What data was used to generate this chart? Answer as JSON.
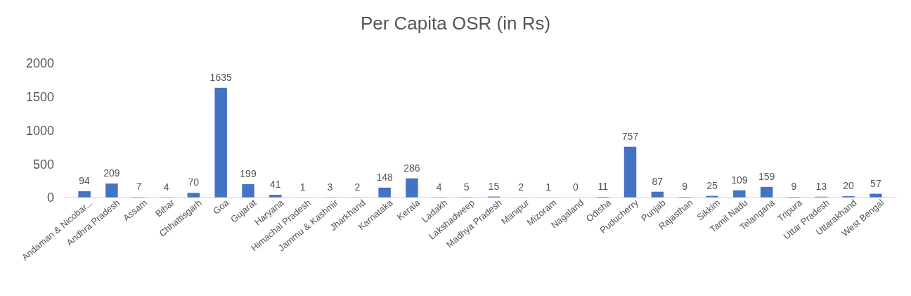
{
  "chart_data": {
    "type": "bar",
    "title": "Per Capita OSR (in Rs)",
    "categories": [
      "Andaman & Nicobar...",
      "Andhra Pradesh",
      "Assam",
      "Bihar",
      "Chhattisgarh",
      "Goa",
      "Gujarat",
      "Haryana",
      "Himachal Pradesh",
      "Jammu & Kashmir",
      "Jharkhand",
      "Karnataka",
      "Kerala",
      "Ladakh",
      "Lakshadweep",
      "Madhya Pradesh",
      "Manipur",
      "Mizoram",
      "Nagaland",
      "Odisha",
      "Puducherry",
      "Punjab",
      "Rajasthan",
      "Sikkim",
      "Tamil Nadu",
      "Telangana",
      "Tripura",
      "Uttar Pradesh",
      "Uttarakhand",
      "West Bengal"
    ],
    "values": [
      94,
      209,
      7,
      4,
      70,
      1635,
      199,
      41,
      1,
      3,
      2,
      148,
      286,
      4,
      5,
      15,
      2,
      1,
      0,
      11,
      757,
      87,
      9,
      25,
      109,
      159,
      9,
      13,
      20,
      57
    ],
    "color": "#4472c4",
    "ylim": [
      0,
      2000
    ],
    "yticks": [
      0,
      500,
      1000,
      1500,
      2000
    ],
    "grid": false,
    "data_labels": true
  }
}
